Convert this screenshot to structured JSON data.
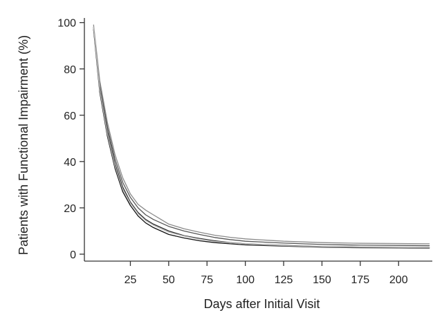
{
  "chart_data": {
    "type": "line",
    "title": "",
    "xlabel": "Days after Initial Visit",
    "ylabel": "Patients with Functional Impairment (%)",
    "xlim": [
      -5,
      222
    ],
    "ylim": [
      -3,
      102
    ],
    "xticks": [
      25,
      50,
      75,
      100,
      125,
      150,
      175,
      200
    ],
    "yticks": [
      0,
      20,
      40,
      60,
      80,
      100
    ],
    "grid": false,
    "legend": "none",
    "colors": [
      "#111111",
      "#2a2a2a",
      "#555555",
      "#8a8a8a",
      "#bdbdbd"
    ],
    "series": [
      {
        "x": [
          1,
          5,
          10,
          15,
          20,
          25,
          30,
          35,
          40,
          45,
          50,
          60,
          70,
          80,
          90,
          100,
          125,
          150,
          175,
          200,
          220
        ],
        "values": [
          97,
          70,
          51,
          37,
          27,
          21,
          16.5,
          13.5,
          11.5,
          10,
          8.5,
          7,
          5.8,
          5,
          4.5,
          4,
          3.5,
          3,
          2.8,
          2.7,
          2.6
        ]
      },
      {
        "x": [
          1,
          5,
          10,
          15,
          20,
          25,
          30,
          35,
          40,
          45,
          50,
          60,
          70,
          80,
          90,
          100,
          125,
          150,
          175,
          200,
          220
        ],
        "values": [
          98,
          72,
          53,
          39,
          29,
          22.5,
          18,
          15,
          13,
          11.5,
          10,
          8,
          6.8,
          5.8,
          5,
          4.5,
          3.8,
          3.3,
          3.1,
          3,
          2.9
        ]
      },
      {
        "x": [
          1,
          5,
          10,
          15,
          20,
          25,
          30,
          35,
          40,
          45,
          50,
          60,
          70,
          80,
          90,
          100,
          125,
          150,
          175,
          200,
          220
        ],
        "values": [
          98,
          73,
          55,
          41,
          31,
          24.5,
          20,
          17,
          15,
          13.5,
          12,
          10,
          8.5,
          7.2,
          6.3,
          5.6,
          4.8,
          4.2,
          3.9,
          3.8,
          3.7
        ]
      },
      {
        "x": [
          1,
          5,
          10,
          15,
          20,
          25,
          30,
          35,
          40,
          45,
          50,
          60,
          70,
          80,
          90,
          100,
          125,
          150,
          175,
          200,
          220
        ],
        "values": [
          99,
          75,
          57,
          43,
          33,
          26,
          21.5,
          19,
          17,
          15,
          13,
          11,
          9.5,
          8.2,
          7.3,
          6.6,
          5.6,
          5,
          4.7,
          4.6,
          4.5
        ]
      },
      {
        "x": [
          1,
          5,
          10,
          15,
          20,
          25,
          30,
          35,
          40,
          45,
          50,
          60,
          70,
          80,
          90,
          100,
          125,
          150,
          175,
          200,
          220
        ],
        "values": [
          98,
          71,
          52,
          38,
          28,
          22,
          17.5,
          14.5,
          12.5,
          11,
          9.5,
          7.8,
          6.5,
          5.5,
          4.9,
          4.4,
          3.7,
          3.2,
          3,
          2.9,
          2.8
        ]
      }
    ]
  }
}
